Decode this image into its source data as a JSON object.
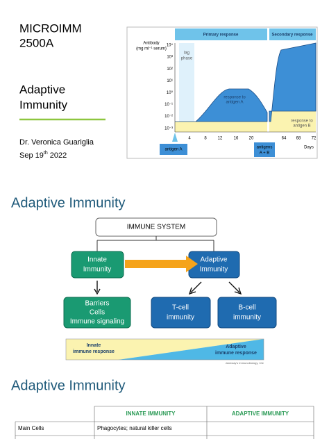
{
  "slide1": {
    "title": [
      "MICROIMM",
      "2500A"
    ],
    "subtitle": [
      "Adaptive",
      "Immunity"
    ],
    "author": "Dr. Veronica Guariglia",
    "date": {
      "day": "Sep 19",
      "suffix": "th",
      "year": "2022"
    },
    "figure": {
      "y_label": [
        "Antibody",
        "(mg ml⁻¹ serum)"
      ],
      "primary": "Primary response",
      "secondary": "Secondary response",
      "y_ticks": [
        "10⁴",
        "10³",
        "10²",
        "10¹",
        "10⁰",
        "10⁻¹",
        "10⁻²",
        "10⁻³"
      ],
      "x_ticks": [
        "4",
        "8",
        "12",
        "16",
        "20",
        "64",
        "68",
        "72"
      ],
      "x_label": "Days",
      "lag": [
        "lag",
        "phase"
      ],
      "response_a": [
        "response to",
        "antigen A"
      ],
      "response_b": [
        "response to",
        "antigen B"
      ],
      "antigen_a": "antigen A",
      "antigen_ab": [
        "antigens",
        "A + B"
      ]
    }
  },
  "slide2": {
    "title": "Adaptive Immunity",
    "root": "IMMUNE SYSTEM",
    "innate": [
      "Innate",
      "Immunity"
    ],
    "adaptive": [
      "Adaptive",
      "Immunity"
    ],
    "barriers": [
      "Barriers",
      "Cells",
      "Immune signaling"
    ],
    "tcell": [
      "T-cell",
      "immunity"
    ],
    "bcell": [
      "B-cell",
      "immunity"
    ],
    "innate_resp": [
      "Innate",
      "immune response"
    ],
    "adaptive_resp": [
      "Adaptive",
      "immune response"
    ],
    "credit": "Janeway's Immunobiology, 10e"
  },
  "slide3": {
    "title": "Adaptive Immunity",
    "table": {
      "header": [
        "INNATE IMMUNITY",
        "ADAPTIVE IMMUNITY"
      ],
      "rows": [
        [
          "Main Cells",
          "Phagocytes; natural killer cells"
        ]
      ]
    }
  }
}
